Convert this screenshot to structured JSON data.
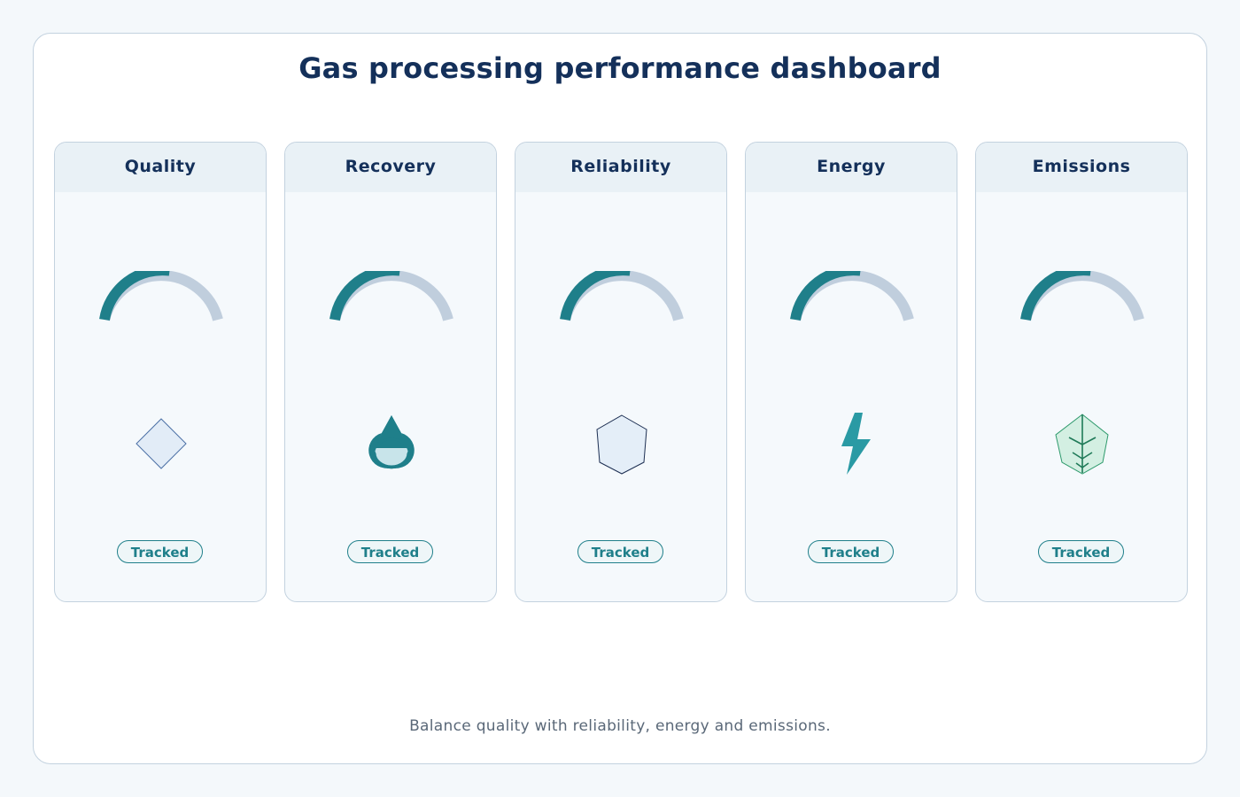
{
  "dashboard": {
    "title": "Gas processing performance dashboard",
    "footer": "Balance quality with reliability, energy and emissions."
  },
  "colors": {
    "accent": "#1f7f8a",
    "gauge_track": "#c0cedd",
    "title": "#14305a",
    "card_header_bg": "#e9f1f6",
    "card_bg": "#f5f9fc"
  },
  "cards": [
    {
      "title": "Quality",
      "icon": "diamond-icon",
      "status": "Tracked"
    },
    {
      "title": "Recovery",
      "icon": "droplet-icon",
      "status": "Tracked"
    },
    {
      "title": "Reliability",
      "icon": "pentagon-icon",
      "status": "Tracked"
    },
    {
      "title": "Energy",
      "icon": "lightning-bolt-icon",
      "status": "Tracked"
    },
    {
      "title": "Emissions",
      "icon": "leaf-icon",
      "status": "Tracked"
    }
  ]
}
